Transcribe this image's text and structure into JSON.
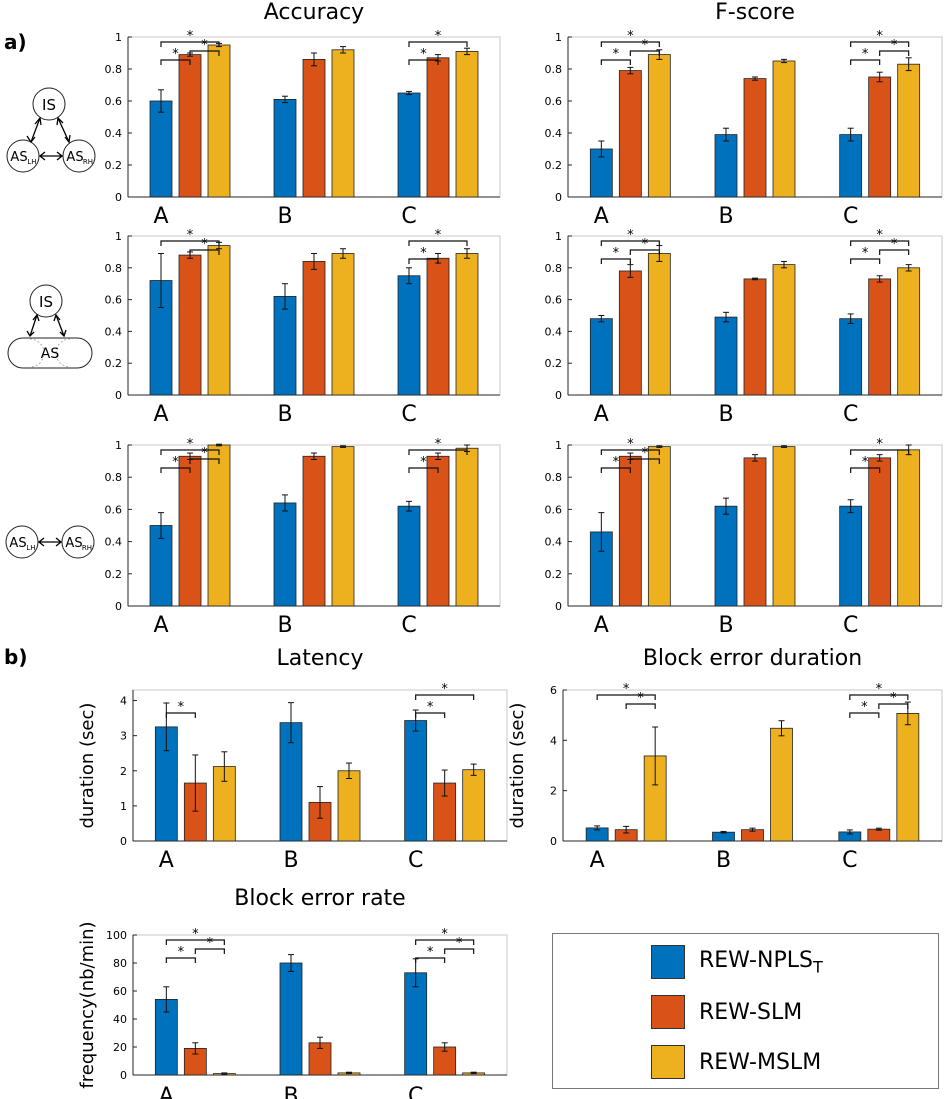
{
  "section_labels": {
    "a": "a)",
    "b": "b)"
  },
  "colors": {
    "npls": "#0072BD",
    "slm": "#D95319",
    "mslm": "#EDB120"
  },
  "diagrams": {
    "d1": {
      "top": "IS",
      "left": "AS",
      "left_sub": "LH",
      "right": "AS",
      "right_sub": "RH"
    },
    "d2": {
      "top": "IS",
      "bottom": "AS"
    },
    "d3": {
      "left": "AS",
      "left_sub": "LH",
      "right": "AS",
      "right_sub": "RH"
    }
  },
  "legend": {
    "items": [
      {
        "label": "REW-NPLS",
        "sub": "T"
      },
      {
        "label": "REW-SLM",
        "sub": ""
      },
      {
        "label": "REW-MSLM",
        "sub": ""
      }
    ]
  },
  "chart_data": [
    {
      "id": "acc1",
      "type": "bar",
      "title": "Accuracy",
      "xlabel": "",
      "ylabel": "",
      "categories": [
        "A",
        "B",
        "C"
      ],
      "ylim": [
        0,
        1
      ],
      "yticks": [
        0,
        0.2,
        0.4,
        0.6,
        0.8,
        1
      ],
      "series": [
        {
          "name": "REW-NPLS_T",
          "values": [
            0.6,
            0.61,
            0.65
          ],
          "errors": [
            0.07,
            0.02,
            0.01
          ]
        },
        {
          "name": "REW-SLM",
          "values": [
            0.89,
            0.86,
            0.87
          ],
          "errors": [
            0.01,
            0.04,
            0.02
          ]
        },
        {
          "name": "REW-MSLM",
          "values": [
            0.95,
            0.92,
            0.91
          ],
          "errors": [
            0.01,
            0.02,
            0.02
          ]
        }
      ],
      "significance": [
        {
          "group": 0,
          "from": 0,
          "to": 1,
          "label": "*"
        },
        {
          "group": 0,
          "from": 1,
          "to": 2,
          "label": "*"
        },
        {
          "group": 0,
          "from": 0,
          "to": 2,
          "label": "*"
        },
        {
          "group": 2,
          "from": 0,
          "to": 1,
          "label": "*"
        },
        {
          "group": 2,
          "from": 0,
          "to": 2,
          "label": "*"
        }
      ]
    },
    {
      "id": "fs1",
      "type": "bar",
      "title": "F-score",
      "xlabel": "",
      "ylabel": "",
      "categories": [
        "A",
        "B",
        "C"
      ],
      "ylim": [
        0,
        1
      ],
      "yticks": [
        0,
        0.2,
        0.4,
        0.6,
        0.8,
        1
      ],
      "series": [
        {
          "name": "REW-NPLS_T",
          "values": [
            0.3,
            0.39,
            0.39
          ],
          "errors": [
            0.05,
            0.04,
            0.04
          ]
        },
        {
          "name": "REW-SLM",
          "values": [
            0.79,
            0.74,
            0.75
          ],
          "errors": [
            0.02,
            0.01,
            0.03
          ]
        },
        {
          "name": "REW-MSLM",
          "values": [
            0.89,
            0.85,
            0.83
          ],
          "errors": [
            0.03,
            0.01,
            0.04
          ]
        }
      ],
      "significance": [
        {
          "group": 0,
          "from": 0,
          "to": 1,
          "label": "*"
        },
        {
          "group": 0,
          "from": 1,
          "to": 2,
          "label": "*"
        },
        {
          "group": 0,
          "from": 0,
          "to": 2,
          "label": "*"
        },
        {
          "group": 2,
          "from": 0,
          "to": 1,
          "label": "*"
        },
        {
          "group": 2,
          "from": 1,
          "to": 2,
          "label": "*"
        },
        {
          "group": 2,
          "from": 0,
          "to": 2,
          "label": "*"
        }
      ]
    },
    {
      "id": "acc2",
      "type": "bar",
      "title": "",
      "xlabel": "",
      "ylabel": "",
      "categories": [
        "A",
        "B",
        "C"
      ],
      "ylim": [
        0,
        1
      ],
      "yticks": [
        0,
        0.2,
        0.4,
        0.6,
        0.8,
        1
      ],
      "series": [
        {
          "name": "REW-NPLS_T",
          "values": [
            0.72,
            0.62,
            0.75
          ],
          "errors": [
            0.17,
            0.08,
            0.05
          ]
        },
        {
          "name": "REW-SLM",
          "values": [
            0.88,
            0.84,
            0.86
          ],
          "errors": [
            0.02,
            0.05,
            0.03
          ]
        },
        {
          "name": "REW-MSLM",
          "values": [
            0.94,
            0.89,
            0.89
          ],
          "errors": [
            0.02,
            0.03,
            0.03
          ]
        }
      ],
      "significance": [
        {
          "group": 0,
          "from": 1,
          "to": 2,
          "label": "*"
        },
        {
          "group": 0,
          "from": 0,
          "to": 2,
          "label": "*"
        },
        {
          "group": 2,
          "from": 0,
          "to": 1,
          "label": "*"
        },
        {
          "group": 2,
          "from": 0,
          "to": 2,
          "label": "*"
        }
      ]
    },
    {
      "id": "fs2",
      "type": "bar",
      "title": "",
      "xlabel": "",
      "ylabel": "",
      "categories": [
        "A",
        "B",
        "C"
      ],
      "ylim": [
        0,
        1
      ],
      "yticks": [
        0,
        0.2,
        0.4,
        0.6,
        0.8,
        1
      ],
      "series": [
        {
          "name": "REW-NPLS_T",
          "values": [
            0.48,
            0.49,
            0.48
          ],
          "errors": [
            0.02,
            0.03,
            0.03
          ]
        },
        {
          "name": "REW-SLM",
          "values": [
            0.78,
            0.73,
            0.73
          ],
          "errors": [
            0.04,
            0.005,
            0.02
          ]
        },
        {
          "name": "REW-MSLM",
          "values": [
            0.89,
            0.82,
            0.8
          ],
          "errors": [
            0.05,
            0.02,
            0.02
          ]
        }
      ],
      "significance": [
        {
          "group": 0,
          "from": 0,
          "to": 1,
          "label": "*"
        },
        {
          "group": 0,
          "from": 1,
          "to": 2,
          "label": "*"
        },
        {
          "group": 0,
          "from": 0,
          "to": 2,
          "label": "*"
        },
        {
          "group": 2,
          "from": 0,
          "to": 1,
          "label": "*"
        },
        {
          "group": 2,
          "from": 1,
          "to": 2,
          "label": "*"
        },
        {
          "group": 2,
          "from": 0,
          "to": 2,
          "label": "*"
        }
      ]
    },
    {
      "id": "acc3",
      "type": "bar",
      "title": "",
      "xlabel": "",
      "ylabel": "",
      "categories": [
        "A",
        "B",
        "C"
      ],
      "ylim": [
        0,
        1
      ],
      "yticks": [
        0,
        0.2,
        0.4,
        0.6,
        0.8,
        1
      ],
      "series": [
        {
          "name": "REW-NPLS_T",
          "values": [
            0.5,
            0.64,
            0.62
          ],
          "errors": [
            0.08,
            0.05,
            0.03
          ]
        },
        {
          "name": "REW-SLM",
          "values": [
            0.93,
            0.93,
            0.93
          ],
          "errors": [
            0.02,
            0.02,
            0.02
          ]
        },
        {
          "name": "REW-MSLM",
          "values": [
            1.0,
            0.99,
            0.98
          ],
          "errors": [
            0.005,
            0.005,
            0.02
          ]
        }
      ],
      "significance": [
        {
          "group": 0,
          "from": 0,
          "to": 1,
          "label": "*"
        },
        {
          "group": 0,
          "from": 1,
          "to": 2,
          "label": "*"
        },
        {
          "group": 0,
          "from": 0,
          "to": 2,
          "label": "*"
        },
        {
          "group": 2,
          "from": 0,
          "to": 1,
          "label": "*"
        },
        {
          "group": 2,
          "from": 0,
          "to": 2,
          "label": "*"
        }
      ]
    },
    {
      "id": "fs3",
      "type": "bar",
      "title": "",
      "xlabel": "",
      "ylabel": "",
      "categories": [
        "A",
        "B",
        "C"
      ],
      "ylim": [
        0,
        1
      ],
      "yticks": [
        0,
        0.2,
        0.4,
        0.6,
        0.8,
        1
      ],
      "series": [
        {
          "name": "REW-NPLS_T",
          "values": [
            0.46,
            0.62,
            0.62
          ],
          "errors": [
            0.12,
            0.05,
            0.04
          ]
        },
        {
          "name": "REW-SLM",
          "values": [
            0.93,
            0.92,
            0.92
          ],
          "errors": [
            0.02,
            0.02,
            0.02
          ]
        },
        {
          "name": "REW-MSLM",
          "values": [
            0.99,
            0.99,
            0.97
          ],
          "errors": [
            0.005,
            0.005,
            0.03
          ]
        }
      ],
      "significance": [
        {
          "group": 0,
          "from": 0,
          "to": 1,
          "label": "*"
        },
        {
          "group": 0,
          "from": 1,
          "to": 2,
          "label": "*"
        },
        {
          "group": 0,
          "from": 0,
          "to": 2,
          "label": "*"
        },
        {
          "group": 2,
          "from": 0,
          "to": 1,
          "label": "*"
        },
        {
          "group": 2,
          "from": 0,
          "to": 2,
          "label": "*"
        }
      ]
    },
    {
      "id": "lat",
      "type": "bar",
      "title": "Latency",
      "xlabel": "",
      "ylabel": "duration (sec)",
      "categories": [
        "A",
        "B",
        "C"
      ],
      "ylim": [
        0,
        4.3
      ],
      "yticks": [
        0,
        1,
        2,
        3,
        4
      ],
      "series": [
        {
          "name": "REW-NPLS_T",
          "values": [
            3.25,
            3.37,
            3.43
          ],
          "errors": [
            0.68,
            0.57,
            0.3
          ]
        },
        {
          "name": "REW-SLM",
          "values": [
            1.65,
            1.1,
            1.65
          ],
          "errors": [
            0.8,
            0.45,
            0.37
          ]
        },
        {
          "name": "REW-MSLM",
          "values": [
            2.12,
            2.0,
            2.03
          ],
          "errors": [
            0.42,
            0.22,
            0.16
          ]
        }
      ],
      "significance": [
        {
          "group": 0,
          "from": 0,
          "to": 1,
          "label": "*"
        },
        {
          "group": 2,
          "from": 0,
          "to": 1,
          "label": "*"
        },
        {
          "group": 2,
          "from": 0,
          "to": 2,
          "label": "*"
        }
      ]
    },
    {
      "id": "bed",
      "type": "bar",
      "title": "Block error duration",
      "xlabel": "",
      "ylabel": "duration (sec)",
      "categories": [
        "A",
        "B",
        "C"
      ],
      "ylim": [
        0,
        6
      ],
      "yticks": [
        0,
        2,
        4,
        6
      ],
      "series": [
        {
          "name": "REW-NPLS_T",
          "values": [
            0.52,
            0.35,
            0.36
          ],
          "errors": [
            0.08,
            0.03,
            0.08
          ]
        },
        {
          "name": "REW-SLM",
          "values": [
            0.45,
            0.45,
            0.47
          ],
          "errors": [
            0.13,
            0.06,
            0.04
          ]
        },
        {
          "name": "REW-MSLM",
          "values": [
            3.38,
            4.48,
            5.07
          ],
          "errors": [
            1.15,
            0.3,
            0.45
          ]
        }
      ],
      "significance": [
        {
          "group": 0,
          "from": 1,
          "to": 2,
          "label": "*"
        },
        {
          "group": 0,
          "from": 0,
          "to": 2,
          "label": "*"
        },
        {
          "group": 2,
          "from": 0,
          "to": 1,
          "label": "*"
        },
        {
          "group": 2,
          "from": 1,
          "to": 2,
          "label": "*"
        },
        {
          "group": 2,
          "from": 0,
          "to": 2,
          "label": "*"
        }
      ]
    },
    {
      "id": "ber",
      "type": "bar",
      "title": "Block error rate",
      "xlabel": "",
      "ylabel": "frequency(nb/min)",
      "categories": [
        "A",
        "B",
        "C"
      ],
      "ylim": [
        0,
        100
      ],
      "yticks": [
        0,
        20,
        40,
        60,
        80,
        100
      ],
      "series": [
        {
          "name": "REW-NPLS_T",
          "values": [
            54,
            80,
            73
          ],
          "errors": [
            9,
            6,
            10
          ]
        },
        {
          "name": "REW-SLM",
          "values": [
            19,
            23,
            20
          ],
          "errors": [
            4,
            4,
            3
          ]
        },
        {
          "name": "REW-MSLM",
          "values": [
            1,
            1.5,
            1.5
          ],
          "errors": [
            0.5,
            0.5,
            0.5
          ]
        }
      ],
      "significance": [
        {
          "group": 0,
          "from": 0,
          "to": 1,
          "label": "*"
        },
        {
          "group": 0,
          "from": 1,
          "to": 2,
          "label": "*"
        },
        {
          "group": 0,
          "from": 0,
          "to": 2,
          "label": "*"
        },
        {
          "group": 2,
          "from": 0,
          "to": 1,
          "label": "*"
        },
        {
          "group": 2,
          "from": 1,
          "to": 2,
          "label": "*"
        },
        {
          "group": 2,
          "from": 0,
          "to": 2,
          "label": "*"
        }
      ]
    }
  ]
}
